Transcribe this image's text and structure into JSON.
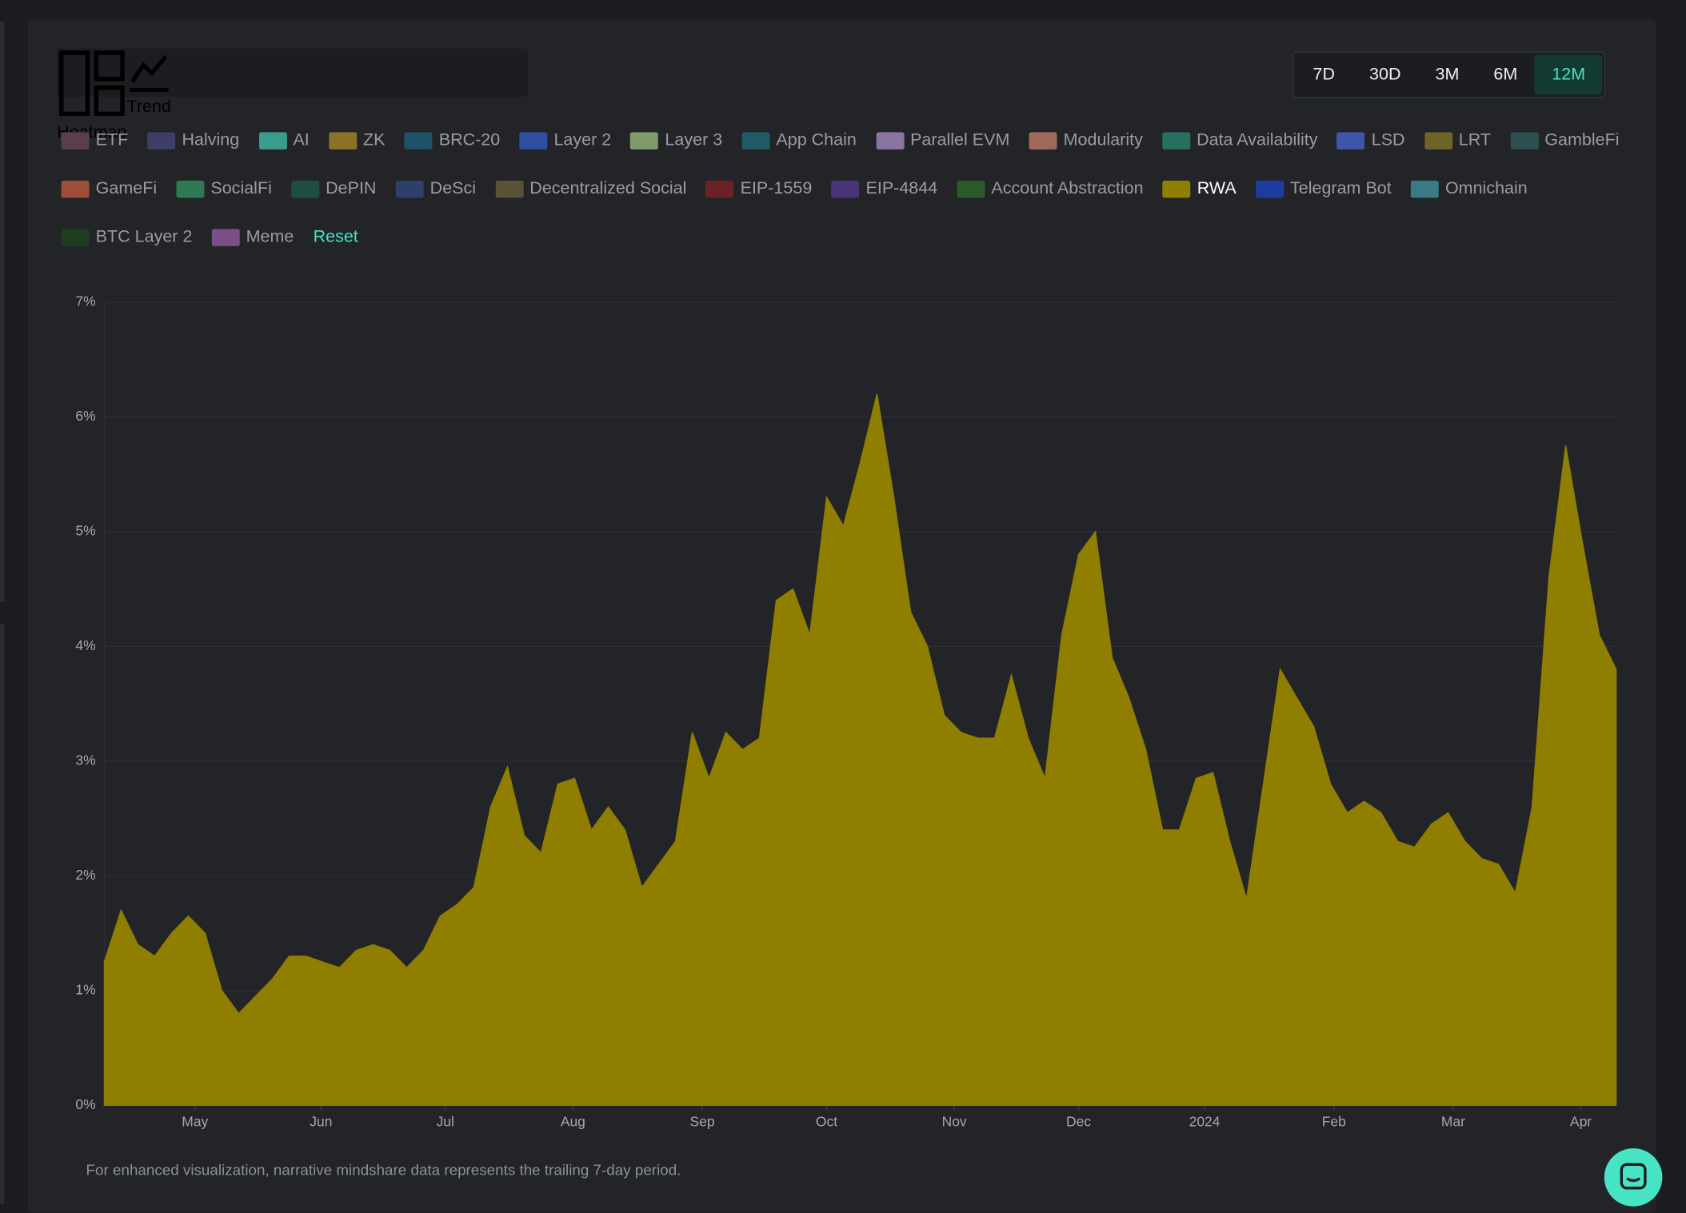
{
  "tabs": [
    "Heatmap",
    "Trend"
  ],
  "ranges": [
    "7D",
    "30D",
    "3M",
    "6M",
    "12M"
  ],
  "reset": "Reset",
  "footnote": "For enhanced visualization, narrative mindshare data represents the trailing 7-day period.",
  "chart_data": {
    "type": "area",
    "series": [
      {
        "name": "ETF",
        "color": "#5a3d4e"
      },
      {
        "name": "Halving",
        "color": "#3d3f66"
      },
      {
        "name": "AI",
        "color": "#3a9c8c"
      },
      {
        "name": "ZK",
        "color": "#8a7329"
      },
      {
        "name": "BRC-20",
        "color": "#1f5266"
      },
      {
        "name": "Layer 2",
        "color": "#2f4fa0"
      },
      {
        "name": "Layer 3",
        "color": "#7f9a6c"
      },
      {
        "name": "App Chain",
        "color": "#1f5a66"
      },
      {
        "name": "Parallel EVM",
        "color": "#8a74a0"
      },
      {
        "name": "Modularity",
        "color": "#a06a5a"
      },
      {
        "name": "Data Availability",
        "color": "#2a6e60"
      },
      {
        "name": "LSD",
        "color": "#3e55a8"
      },
      {
        "name": "LRT",
        "color": "#6e6428"
      },
      {
        "name": "GambleFi",
        "color": "#2e4f4f"
      },
      {
        "name": "GameFi",
        "color": "#a04e3c"
      },
      {
        "name": "SocialFi",
        "color": "#2f7a52"
      },
      {
        "name": "DePIN",
        "color": "#1f4e40"
      },
      {
        "name": "DeSci",
        "color": "#2e3f6a"
      },
      {
        "name": "Decentralized Social",
        "color": "#5a5238"
      },
      {
        "name": "EIP-1559",
        "color": "#6a2226"
      },
      {
        "name": "EIP-4844",
        "color": "#4a3478"
      },
      {
        "name": "Account Abstraction",
        "color": "#2b5a28"
      },
      {
        "name": "RWA",
        "color": "#8f7e00",
        "values": [
          1.25,
          1.7,
          1.4,
          1.3,
          1.5,
          1.65,
          1.5,
          1.0,
          0.8,
          0.95,
          1.1,
          1.3,
          1.3,
          1.25,
          1.2,
          1.35,
          1.4,
          1.35,
          1.2,
          1.35,
          1.65,
          1.75,
          1.9,
          2.6,
          2.95,
          2.35,
          2.2,
          2.8,
          2.85,
          2.4,
          2.6,
          2.4,
          1.9,
          2.1,
          2.3,
          3.25,
          2.85,
          3.25,
          3.1,
          3.2,
          4.4,
          4.5,
          4.1,
          5.3,
          5.05,
          5.6,
          6.2,
          5.3,
          4.3,
          4.0,
          3.4,
          3.25,
          3.2,
          3.2,
          3.75,
          3.2,
          2.85,
          4.1,
          4.8,
          5.0,
          3.9,
          3.55,
          3.1,
          2.4,
          2.4,
          2.85,
          2.9,
          2.3,
          1.8,
          2.8,
          3.8,
          3.55,
          3.3,
          2.8,
          2.55,
          2.65,
          2.55,
          2.3,
          2.25,
          2.45,
          2.55,
          2.3,
          2.15,
          2.1,
          1.85,
          2.6,
          4.6,
          5.75,
          4.9,
          4.1,
          3.8
        ]
      },
      {
        "name": "Telegram Bot",
        "color": "#1e3ca0"
      },
      {
        "name": "Omnichain",
        "color": "#3a7a82"
      },
      {
        "name": "BTC Layer 2",
        "color": "#1f3d1f"
      },
      {
        "name": "Meme",
        "color": "#7a4e86"
      }
    ],
    "xlim": [
      0,
      90
    ],
    "xticks": [
      {
        "value": 5.4,
        "label": "May"
      },
      {
        "value": 12.9,
        "label": "Jun"
      },
      {
        "value": 20.3,
        "label": "Jul"
      },
      {
        "value": 27.9,
        "label": "Aug"
      },
      {
        "value": 35.6,
        "label": "Sep"
      },
      {
        "value": 43.0,
        "label": "Oct"
      },
      {
        "value": 50.6,
        "label": "Nov"
      },
      {
        "value": 58.0,
        "label": "Dec"
      },
      {
        "value": 65.5,
        "label": "2024"
      },
      {
        "value": 73.2,
        "label": "Feb"
      },
      {
        "value": 80.3,
        "label": "Mar"
      },
      {
        "value": 87.9,
        "label": "Apr"
      }
    ],
    "ylim": [
      0,
      7
    ],
    "yticks": [
      {
        "value": 0,
        "label": "0%"
      },
      {
        "value": 1,
        "label": "1%"
      },
      {
        "value": 2,
        "label": "2%"
      },
      {
        "value": 3,
        "label": "3%"
      },
      {
        "value": 4,
        "label": "4%"
      },
      {
        "value": 5,
        "label": "5%"
      },
      {
        "value": 6,
        "label": "6%"
      },
      {
        "value": 7,
        "label": "7%"
      }
    ],
    "grid": true
  }
}
